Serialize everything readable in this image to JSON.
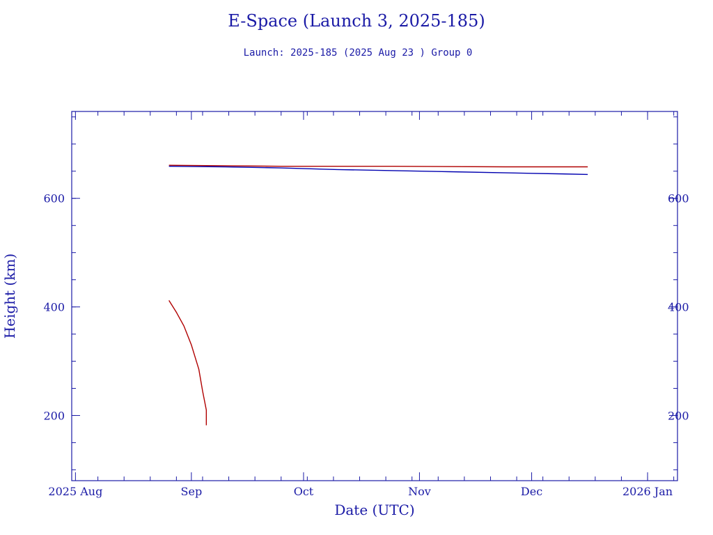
{
  "page": {
    "title": "E-Space (Launch 3, 2025-185)",
    "subtitle": "Launch: 2025-185  (2025 Aug 23 )  Group 0"
  },
  "colors": {
    "axis": "#1a1aa6",
    "series_blue": "#0000b0",
    "series_red": "#b00000"
  },
  "chart_data": {
    "type": "line",
    "title": "E-Space (Launch 3, 2025-185)",
    "subtitle": "Launch: 2025-185  (2025 Aug 23 )  Group 0",
    "xlabel": "Date (UTC)",
    "ylabel": "Height (km)",
    "x_type": "date",
    "xlim": [
      "2025-07-31",
      "2026-01-09"
    ],
    "ylim": [
      80,
      760
    ],
    "x_ticks": [
      {
        "date": "2025-08-01",
        "label": "2025 Aug"
      },
      {
        "date": "2025-09-01",
        "label": "Sep"
      },
      {
        "date": "2025-10-01",
        "label": "Oct"
      },
      {
        "date": "2025-11-01",
        "label": "Nov"
      },
      {
        "date": "2025-12-01",
        "label": "Dec"
      },
      {
        "date": "2026-01-01",
        "label": "2026 Jan"
      }
    ],
    "y_ticks": [
      {
        "value": 200,
        "label": "200"
      },
      {
        "value": 400,
        "label": "400"
      },
      {
        "value": 600,
        "label": "600"
      }
    ],
    "grid": false,
    "series": [
      {
        "color": "#0000b0",
        "points": [
          [
            "2025-08-26",
            659
          ],
          [
            "2025-09-10",
            658
          ],
          [
            "2025-09-25",
            656
          ],
          [
            "2025-10-10",
            653
          ],
          [
            "2025-10-25",
            651
          ],
          [
            "2025-11-09",
            649
          ],
          [
            "2025-11-24",
            647
          ],
          [
            "2025-12-09",
            645
          ],
          [
            "2025-12-16",
            644
          ]
        ]
      },
      {
        "color": "#b00000",
        "points": [
          [
            "2025-08-26",
            661
          ],
          [
            "2025-09-10",
            660
          ],
          [
            "2025-09-25",
            659
          ],
          [
            "2025-10-25",
            659
          ],
          [
            "2025-11-24",
            658
          ],
          [
            "2025-12-16",
            658
          ]
        ]
      },
      {
        "color": "#b00000",
        "points": [
          [
            "2025-08-26",
            412
          ],
          [
            "2025-08-28",
            390
          ],
          [
            "2025-08-30",
            365
          ],
          [
            "2025-09-01",
            330
          ],
          [
            "2025-09-03",
            285
          ],
          [
            "2025-09-04",
            245
          ],
          [
            "2025-09-05",
            210
          ],
          [
            "2025-09-05",
            182
          ]
        ]
      }
    ]
  }
}
